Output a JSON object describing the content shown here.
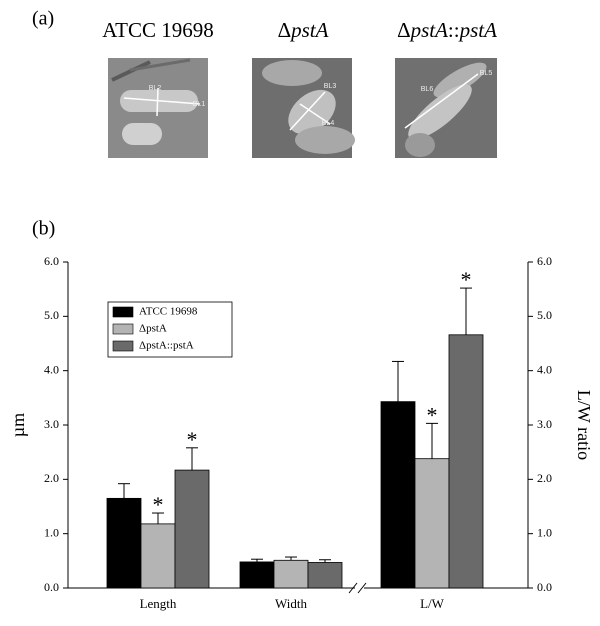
{
  "panel_a": {
    "label": "(a)",
    "strains": [
      {
        "title": [
          {
            "text": "ATCC 19698"
          }
        ],
        "measures": [
          "BL2",
          "BL1"
        ]
      },
      {
        "title": [
          {
            "text": "Δ"
          },
          {
            "text": "pstA",
            "italic": true
          }
        ],
        "measures": [
          "BL3",
          "BL4"
        ]
      },
      {
        "title": [
          {
            "text": "Δ"
          },
          {
            "text": "pstA",
            "italic": true
          },
          {
            "text": "::"
          },
          {
            "text": "pstA",
            "italic": true
          }
        ],
        "measures": [
          "BL5",
          "BL6"
        ]
      }
    ]
  },
  "chart_data": {
    "type": "bar",
    "panel_label": "(b)",
    "categories": [
      "Length",
      "Width",
      "L/W"
    ],
    "ylabel": "µm",
    "y2label": "L/W ratio",
    "ylim": [
      0,
      6
    ],
    "y2lim": [
      0,
      6
    ],
    "yticks": [
      {
        "value": 0,
        "label": "0.0"
      },
      {
        "value": 1,
        "label": "1.0"
      },
      {
        "value": 2,
        "label": "2.0"
      },
      {
        "value": 3,
        "label": "3.0"
      },
      {
        "value": 4,
        "label": "4.0"
      },
      {
        "value": 5,
        "label": "5.0"
      },
      {
        "value": 6,
        "label": "6.0"
      }
    ],
    "y2ticks": [
      {
        "value": 0,
        "label": "0.0"
      },
      {
        "value": 1,
        "label": "1.0"
      },
      {
        "value": 2,
        "label": "2.0"
      },
      {
        "value": 3,
        "label": "3.0"
      },
      {
        "value": 4,
        "label": "4.0"
      },
      {
        "value": 5,
        "label": "5.0"
      },
      {
        "value": 6,
        "label": "6.0"
      }
    ],
    "legend": "upper left",
    "series": [
      {
        "name": "ATCC 19698",
        "color": "#000000",
        "values": [
          1.65,
          0.48,
          3.43
        ],
        "errors": [
          0.27,
          0.05,
          0.74
        ]
      },
      {
        "name": "ΔpstA",
        "color": "#b4b4b4",
        "values": [
          1.18,
          0.51,
          2.38
        ],
        "errors": [
          0.2,
          0.06,
          0.65
        ]
      },
      {
        "name": "ΔpstA::pstA",
        "color": "#6a6a6a",
        "values": [
          2.17,
          0.47,
          4.66
        ],
        "errors": [
          0.41,
          0.05,
          0.86
        ]
      }
    ],
    "annotations": [
      {
        "text": "*",
        "series": 1,
        "category": 0
      },
      {
        "text": "*",
        "series": 2,
        "category": 0
      },
      {
        "text": "*",
        "series": 1,
        "category": 2
      },
      {
        "text": "*",
        "series": 2,
        "category": 2
      }
    ]
  }
}
